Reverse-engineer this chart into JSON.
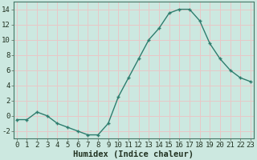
{
  "x": [
    0,
    1,
    2,
    3,
    4,
    5,
    6,
    7,
    8,
    9,
    10,
    11,
    12,
    13,
    14,
    15,
    16,
    17,
    18,
    19,
    20,
    21,
    22,
    23
  ],
  "y": [
    -0.5,
    -0.5,
    0.5,
    0.0,
    -1.0,
    -1.5,
    -2.0,
    -2.5,
    -2.5,
    -1.0,
    2.5,
    5.0,
    7.5,
    10.0,
    11.5,
    13.5,
    14.0,
    14.0,
    12.5,
    9.5,
    7.5,
    6.0,
    5.0,
    4.5
  ],
  "line_color": "#2e7d6e",
  "bg_color": "#cce8e0",
  "grid_color": "#e8c8c8",
  "xlabel": "Humidex (Indice chaleur)",
  "xlabel_fontsize": 7.5,
  "tick_fontsize": 6.5,
  "ylim": [
    -3,
    15
  ],
  "yticks": [
    -2,
    0,
    2,
    4,
    6,
    8,
    10,
    12,
    14
  ],
  "xticks": [
    0,
    1,
    2,
    3,
    4,
    5,
    6,
    7,
    8,
    9,
    10,
    11,
    12,
    13,
    14,
    15,
    16,
    17,
    18,
    19,
    20,
    21,
    22,
    23
  ]
}
